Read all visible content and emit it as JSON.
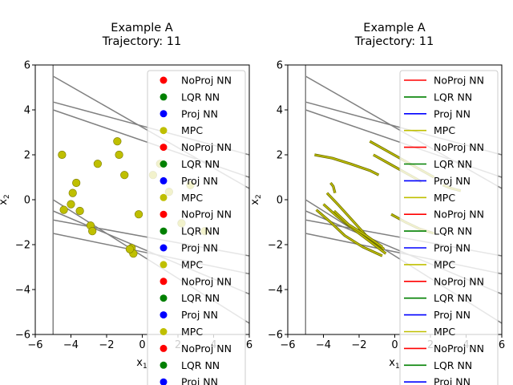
{
  "chart_data": [
    {
      "type": "scatter",
      "title_line1": "Example A",
      "title_line2": "Trajectory: 11",
      "xlabel": "x",
      "xlabel_sub": "1",
      "ylabel": "x",
      "ylabel_sub": "2",
      "xlim": [
        -6,
        6
      ],
      "ylim": [
        -6,
        6
      ],
      "xticks": [
        -6,
        -4,
        -2,
        0,
        2,
        4,
        6
      ],
      "yticks": [
        -6,
        -4,
        -2,
        0,
        2,
        4,
        6
      ],
      "xtick_labels": [
        "−6",
        "−4",
        "−2",
        "0",
        "2",
        "4",
        "6"
      ],
      "ytick_labels": [
        "−6",
        "−4",
        "−2",
        "0",
        "2",
        "4",
        "6"
      ],
      "grid": false,
      "legend_position": "top-right",
      "legend": [
        {
          "label": "NoProj NN",
          "color": "#ff0000"
        },
        {
          "label": "LQR NN",
          "color": "#008000"
        },
        {
          "label": "Proj NN",
          "color": "#0000ff"
        },
        {
          "label": "MPC",
          "color": "#bfbf00"
        },
        {
          "label": "NoProj NN",
          "color": "#ff0000"
        },
        {
          "label": "LQR NN",
          "color": "#008000"
        },
        {
          "label": "Proj NN",
          "color": "#0000ff"
        },
        {
          "label": "MPC",
          "color": "#bfbf00"
        },
        {
          "label": "NoProj NN",
          "color": "#ff0000"
        },
        {
          "label": "LQR NN",
          "color": "#008000"
        },
        {
          "label": "Proj NN",
          "color": "#0000ff"
        },
        {
          "label": "MPC",
          "color": "#bfbf00"
        },
        {
          "label": "NoProj NN",
          "color": "#ff0000"
        },
        {
          "label": "LQR NN",
          "color": "#008000"
        },
        {
          "label": "Proj NN",
          "color": "#0000ff"
        },
        {
          "label": "MPC",
          "color": "#bfbf00"
        },
        {
          "label": "NoProj NN",
          "color": "#ff0000"
        },
        {
          "label": "LQR NN",
          "color": "#008000"
        },
        {
          "label": "Proj NN",
          "color": "#0000ff"
        }
      ],
      "constraint_lines": [
        {
          "x": [
            -5,
            6
          ],
          "y": [
            5.5,
            0.5
          ]
        },
        {
          "x": [
            -5,
            6
          ],
          "y": [
            4.35,
            2.0
          ]
        },
        {
          "x": [
            -5,
            6
          ],
          "y": [
            4.0,
            1.0
          ]
        },
        {
          "x": [
            -5,
            6
          ],
          "y": [
            0.0,
            -5.5
          ]
        },
        {
          "x": [
            -5,
            6
          ],
          "y": [
            -0.9,
            -2.5
          ]
        },
        {
          "x": [
            -5,
            6
          ],
          "y": [
            -1.5,
            -3.3
          ]
        },
        {
          "x": [
            -5,
            6
          ],
          "y": [
            -0.5,
            -4.2
          ]
        },
        {
          "x": [
            -5,
            -5
          ],
          "y": [
            -6,
            6
          ]
        }
      ],
      "series": [
        {
          "name": "MPC",
          "color": "#bfbf00",
          "x": [
            -4.5,
            -1.4,
            -1.3,
            -2.5,
            -1.0,
            -3.7,
            -3.9,
            -4.0,
            -4.4,
            -3.5,
            -2.9,
            -2.8,
            -0.6,
            -0.5,
            -0.2,
            0.6,
            1.0,
            1.5,
            2.2,
            2.7,
            3.5,
            -0.7
          ],
          "y": [
            2.0,
            2.6,
            2.0,
            1.6,
            1.1,
            0.75,
            0.3,
            -0.2,
            -0.45,
            -0.5,
            -1.15,
            -1.4,
            -2.15,
            -2.4,
            -0.65,
            1.1,
            1.6,
            0.35,
            -1.05,
            0.65,
            -1.4,
            -2.2
          ]
        }
      ]
    },
    {
      "type": "line",
      "title_line1": "Example A",
      "title_line2": "Trajectory: 11",
      "xlabel": "x",
      "xlabel_sub": "1",
      "ylabel": "x",
      "ylabel_sub": "2",
      "xlim": [
        -6,
        6
      ],
      "ylim": [
        -6,
        6
      ],
      "xticks": [
        -6,
        -4,
        -2,
        0,
        2,
        4,
        6
      ],
      "yticks": [
        -6,
        -4,
        -2,
        0,
        2,
        4,
        6
      ],
      "xtick_labels": [
        "−6",
        "−4",
        "−2",
        "0",
        "2",
        "4",
        "6"
      ],
      "ytick_labels": [
        "−6",
        "−4",
        "−2",
        "0",
        "2",
        "4",
        "6"
      ],
      "grid": false,
      "legend_position": "top-right",
      "legend": [
        {
          "label": "NoProj NN",
          "color": "#ff0000"
        },
        {
          "label": "LQR NN",
          "color": "#008000"
        },
        {
          "label": "Proj NN",
          "color": "#0000ff"
        },
        {
          "label": "MPC",
          "color": "#bfbf00"
        },
        {
          "label": "NoProj NN",
          "color": "#ff0000"
        },
        {
          "label": "LQR NN",
          "color": "#008000"
        },
        {
          "label": "Proj NN",
          "color": "#0000ff"
        },
        {
          "label": "MPC",
          "color": "#bfbf00"
        },
        {
          "label": "NoProj NN",
          "color": "#ff0000"
        },
        {
          "label": "LQR NN",
          "color": "#008000"
        },
        {
          "label": "Proj NN",
          "color": "#0000ff"
        },
        {
          "label": "MPC",
          "color": "#bfbf00"
        },
        {
          "label": "NoProj NN",
          "color": "#ff0000"
        },
        {
          "label": "LQR NN",
          "color": "#008000"
        },
        {
          "label": "Proj NN",
          "color": "#0000ff"
        },
        {
          "label": "MPC",
          "color": "#bfbf00"
        },
        {
          "label": "NoProj NN",
          "color": "#ff0000"
        },
        {
          "label": "LQR NN",
          "color": "#008000"
        },
        {
          "label": "Proj NN",
          "color": "#0000ff"
        }
      ],
      "constraint_lines": [
        {
          "x": [
            -5,
            6
          ],
          "y": [
            5.5,
            0.5
          ]
        },
        {
          "x": [
            -5,
            6
          ],
          "y": [
            4.35,
            2.0
          ]
        },
        {
          "x": [
            -5,
            6
          ],
          "y": [
            4.0,
            1.0
          ]
        },
        {
          "x": [
            -5,
            6
          ],
          "y": [
            0.0,
            -5.5
          ]
        },
        {
          "x": [
            -5,
            6
          ],
          "y": [
            -0.9,
            -2.5
          ]
        },
        {
          "x": [
            -5,
            6
          ],
          "y": [
            -1.5,
            -3.3
          ]
        },
        {
          "x": [
            -5,
            6
          ],
          "y": [
            -0.5,
            -4.2
          ]
        },
        {
          "x": [
            -5,
            -5
          ],
          "y": [
            -6,
            6
          ]
        }
      ],
      "trajectories": [
        {
          "color": "#bfbf00",
          "x": [
            -4.5,
            -3.5,
            -2.5,
            -1.4,
            -0.9
          ],
          "y": [
            2.0,
            1.85,
            1.6,
            1.3,
            1.1
          ]
        },
        {
          "color": "#bfbf00",
          "x": [
            -1.4,
            -0.5,
            0.4,
            1.3,
            2.2
          ],
          "y": [
            2.6,
            2.2,
            1.8,
            1.4,
            1.0
          ]
        },
        {
          "color": "#bfbf00",
          "x": [
            -1.2,
            -0.3,
            0.6,
            1.5
          ],
          "y": [
            2.0,
            1.6,
            1.2,
            0.8
          ]
        },
        {
          "color": "#bfbf00",
          "x": [
            -3.6,
            -3.45,
            -3.35
          ],
          "y": [
            0.75,
            0.6,
            0.3
          ]
        },
        {
          "color": "#bfbf00",
          "x": [
            -3.8,
            -3.2,
            -2.4,
            -1.6,
            -0.6
          ],
          "y": [
            0.3,
            -0.2,
            -0.9,
            -1.6,
            -2.2
          ]
        },
        {
          "color": "#bfbf00",
          "x": [
            -4.0,
            -3.3,
            -2.5,
            -1.5,
            -0.5
          ],
          "y": [
            -0.2,
            -0.7,
            -1.2,
            -1.8,
            -2.4
          ]
        },
        {
          "color": "#bfbf00",
          "x": [
            -4.4,
            -3.6,
            -2.8,
            -1.8,
            -0.7
          ],
          "y": [
            -0.45,
            -1.0,
            -1.6,
            -2.1,
            -2.5
          ]
        },
        {
          "color": "#bfbf00",
          "x": [
            -3.4,
            -2.6,
            -1.6,
            -0.7
          ],
          "y": [
            -0.5,
            -1.1,
            -1.6,
            -2.1
          ]
        },
        {
          "color": "#bfbf00",
          "x": [
            -0.2,
            0.6,
            1.4,
            2.2
          ],
          "y": [
            -0.65,
            -1.0,
            -1.3,
            -1.5
          ]
        },
        {
          "color": "#bfbf00",
          "x": [
            2.7,
            3.2,
            3.7
          ],
          "y": [
            0.65,
            0.5,
            0.4
          ]
        }
      ]
    }
  ]
}
